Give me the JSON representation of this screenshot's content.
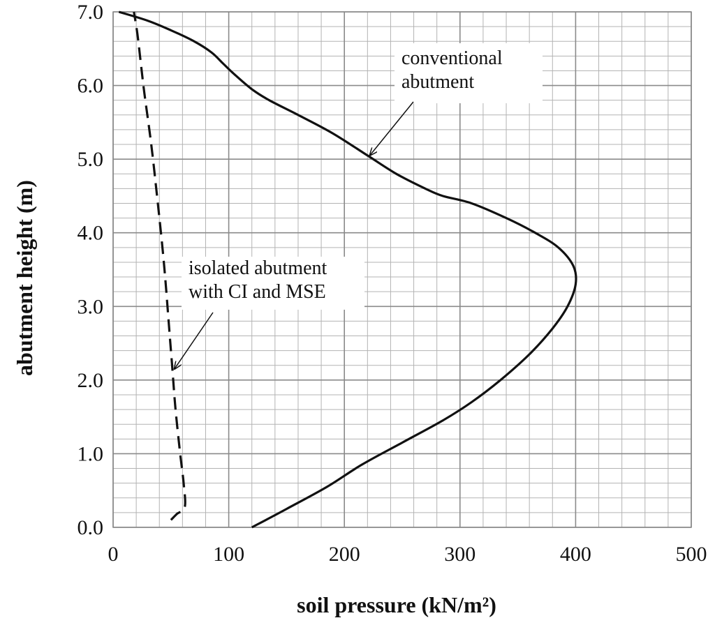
{
  "chart_data": {
    "type": "line",
    "xlabel": "soil pressure (kN/m²)",
    "ylabel": "abutment height (m)",
    "xlim": [
      0,
      500
    ],
    "ylim": [
      0,
      7
    ],
    "grid": true,
    "x_ticks": [
      "0",
      "100",
      "200",
      "300",
      "400",
      "500"
    ],
    "y_ticks": [
      "0.0",
      "1.0",
      "2.0",
      "3.0",
      "4.0",
      "5.0",
      "6.0",
      "7.0"
    ],
    "series": [
      {
        "name": "conventional abutment",
        "style": "solid",
        "points": [
          [
            120,
            0.0
          ],
          [
            150,
            0.25
          ],
          [
            185,
            0.55
          ],
          [
            215,
            0.85
          ],
          [
            250,
            1.15
          ],
          [
            285,
            1.45
          ],
          [
            310,
            1.7
          ],
          [
            335,
            2.0
          ],
          [
            360,
            2.35
          ],
          [
            380,
            2.7
          ],
          [
            393,
            3.0
          ],
          [
            400,
            3.3
          ],
          [
            398,
            3.55
          ],
          [
            385,
            3.8
          ],
          [
            365,
            4.0
          ],
          [
            340,
            4.2
          ],
          [
            310,
            4.4
          ],
          [
            285,
            4.5
          ],
          [
            270,
            4.6
          ],
          [
            245,
            4.8
          ],
          [
            220,
            5.05
          ],
          [
            190,
            5.35
          ],
          [
            160,
            5.6
          ],
          [
            135,
            5.8
          ],
          [
            120,
            5.95
          ],
          [
            105,
            6.15
          ],
          [
            95,
            6.3
          ],
          [
            85,
            6.45
          ],
          [
            70,
            6.6
          ],
          [
            50,
            6.75
          ],
          [
            30,
            6.88
          ],
          [
            5,
            7.0
          ]
        ]
      },
      {
        "name": "isolated abutment with CI and MSE",
        "style": "dashed",
        "points": [
          [
            50,
            0.1
          ],
          [
            55,
            0.18
          ],
          [
            62,
            0.28
          ],
          [
            61,
            0.6
          ],
          [
            58,
            1.0
          ],
          [
            54,
            1.6
          ],
          [
            51,
            2.2
          ],
          [
            48,
            2.8
          ],
          [
            45,
            3.4
          ],
          [
            42,
            3.9
          ],
          [
            38,
            4.5
          ],
          [
            33,
            5.2
          ],
          [
            27,
            5.9
          ],
          [
            24,
            6.3
          ],
          [
            21,
            6.7
          ],
          [
            18,
            7.0
          ]
        ]
      }
    ],
    "annotations": [
      {
        "lines": [
          "conventional",
          "abutment"
        ],
        "target": [
          222,
          5.05
        ]
      },
      {
        "lines": [
          "isolated abutment",
          "with CI and MSE"
        ],
        "target": [
          53,
          2.15
        ]
      }
    ]
  }
}
